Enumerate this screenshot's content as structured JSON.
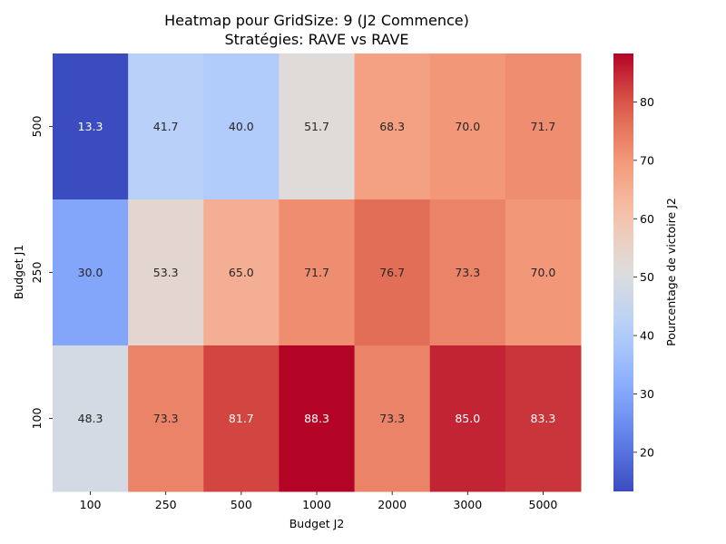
{
  "chart_data": {
    "type": "heatmap",
    "title_lines": [
      "Heatmap pour GridSize: 9 (J2 Commence)",
      "Stratégies: RAVE vs RAVE"
    ],
    "xlabel": "Budget J2",
    "ylabel": "Budget J1",
    "x_categories": [
      "100",
      "250",
      "500",
      "1000",
      "2000",
      "3000",
      "5000"
    ],
    "y_categories": [
      "500",
      "250",
      "100"
    ],
    "values": [
      [
        13.3,
        41.7,
        40.0,
        51.7,
        68.3,
        70.0,
        71.7
      ],
      [
        30.0,
        53.3,
        65.0,
        71.7,
        76.7,
        73.3,
        70.0
      ],
      [
        48.3,
        73.3,
        81.7,
        88.3,
        73.3,
        85.0,
        83.3
      ]
    ],
    "labels": [
      [
        "13.3",
        "41.7",
        "40.0",
        "51.7",
        "68.3",
        "70.0",
        "71.7"
      ],
      [
        "30.0",
        "53.3",
        "65.0",
        "71.7",
        "76.7",
        "73.3",
        "70.0"
      ],
      [
        "48.3",
        "73.3",
        "81.7",
        "88.3",
        "73.3",
        "85.0",
        "83.3"
      ]
    ],
    "colormap": "coolwarm",
    "vmin": 13.3,
    "vmax": 88.3,
    "colorbar": {
      "label": "Pourcentage de victoire J2",
      "ticks": [
        20,
        30,
        40,
        50,
        60,
        70,
        80
      ],
      "tick_labels": [
        "20",
        "30",
        "40",
        "50",
        "60",
        "70",
        "80"
      ]
    }
  }
}
